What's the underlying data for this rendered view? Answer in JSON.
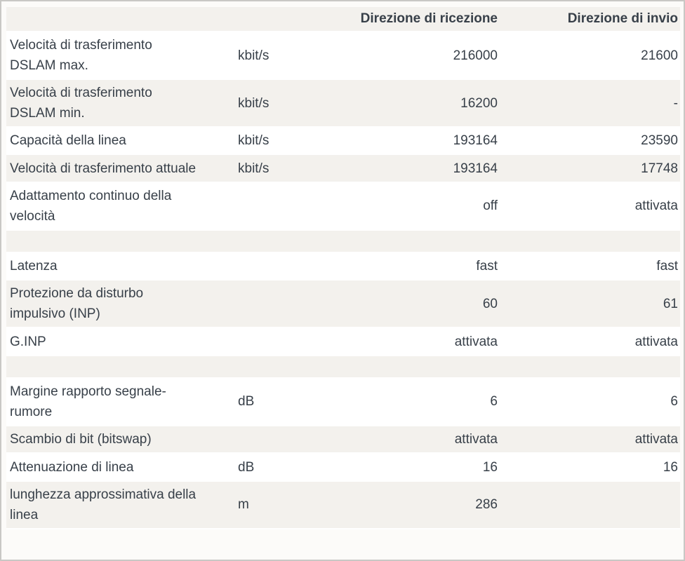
{
  "colors": {
    "zebra_row": "#f3f1ed",
    "text": "#384049",
    "frame_border": "#c9c8c5"
  },
  "table": {
    "header": {
      "receive": "Direzione di ricezione",
      "send": "Direzione di invio"
    },
    "rows": [
      {
        "label": "Velocità di trasferimento DSLAM max.",
        "unit": "kbit/s",
        "receive": "216000",
        "send": "21600",
        "spacer": false
      },
      {
        "label": "Velocità di trasferimento DSLAM min.",
        "unit": "kbit/s",
        "receive": "16200",
        "send": "-",
        "spacer": false
      },
      {
        "label": "Capacità della linea",
        "unit": "kbit/s",
        "receive": "193164",
        "send": "23590",
        "spacer": false
      },
      {
        "label": "Velocità di trasferimento attuale",
        "unit": "kbit/s",
        "receive": "193164",
        "send": "17748",
        "spacer": false
      },
      {
        "label": "Adattamento continuo della velocità",
        "unit": "",
        "receive": "off",
        "send": "attivata",
        "spacer": false
      },
      {
        "label": "",
        "unit": "",
        "receive": "",
        "send": "",
        "spacer": true
      },
      {
        "label": "Latenza",
        "unit": "",
        "receive": "fast",
        "send": "fast",
        "spacer": false
      },
      {
        "label": "Protezione da disturbo impulsivo (INP)",
        "unit": "",
        "receive": "60",
        "send": "61",
        "spacer": false
      },
      {
        "label": "G.INP",
        "unit": "",
        "receive": "attivata",
        "send": "attivata",
        "spacer": false
      },
      {
        "label": "",
        "unit": "",
        "receive": "",
        "send": "",
        "spacer": true
      },
      {
        "label": "Margine rapporto segnale-rumore",
        "unit": "dB",
        "receive": "6",
        "send": "6",
        "spacer": false
      },
      {
        "label": "Scambio di bit (bitswap)",
        "unit": "",
        "receive": "attivata",
        "send": "attivata",
        "spacer": false
      },
      {
        "label": "Attenuazione di linea",
        "unit": "dB",
        "receive": "16",
        "send": "16",
        "spacer": false
      },
      {
        "label": "lunghezza approssimativa della linea",
        "unit": "m",
        "receive": "286",
        "send": "",
        "spacer": false
      }
    ]
  }
}
